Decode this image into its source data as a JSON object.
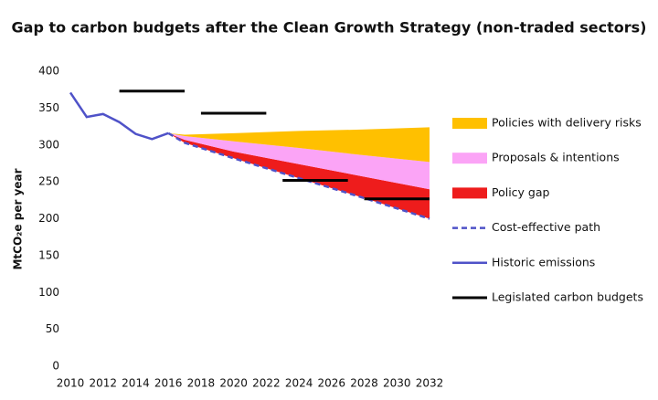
{
  "chart_data": {
    "type": "area",
    "title": "Gap to carbon budgets after the Clean Growth Strategy (non-traded sectors)",
    "y_label": "MtCO₂e per year",
    "xlim": [
      2010,
      2032
    ],
    "xticks": [
      2010,
      2012,
      2014,
      2016,
      2018,
      2020,
      2022,
      2024,
      2026,
      2028,
      2030,
      2032
    ],
    "ylim": [
      0,
      400
    ],
    "yticks": [
      0,
      50,
      100,
      150,
      200,
      250,
      300,
      350,
      400
    ],
    "stacked": true,
    "legend": "right",
    "series": [
      {
        "name": "Policies with delivery risks",
        "type": "area",
        "color": "#ffc000",
        "x": [
          2016,
          2017,
          2020,
          2024,
          2028,
          2032
        ],
        "values": [
          0,
          2,
          11,
          23,
          35,
          47
        ]
      },
      {
        "name": "Proposals & intentions",
        "type": "area",
        "color": "#fba4f6",
        "x": [
          2016,
          2017,
          2020,
          2024,
          2028,
          2032
        ],
        "values": [
          0,
          5,
          14,
          22,
          29,
          37
        ]
      },
      {
        "name": "Policy gap",
        "type": "area",
        "color": "#ee1c1c",
        "x": [
          2016,
          2017,
          2020,
          2024,
          2028,
          2032
        ],
        "values": [
          0,
          4,
          9,
          19,
          29,
          40
        ]
      },
      {
        "name": "Cost-effective path",
        "type": "line",
        "dashed": true,
        "color": "#4f52c8",
        "x": [
          2016,
          2017,
          2020,
          2024,
          2028,
          2032
        ],
        "values": [
          316,
          303,
          282,
          255,
          228,
          200
        ]
      },
      {
        "name": "Historic emissions",
        "type": "line",
        "color": "#4f52c8",
        "x": [
          2010,
          2011,
          2012,
          2013,
          2014,
          2015,
          2016
        ],
        "values": [
          371,
          338,
          342,
          331,
          315,
          308,
          316
        ]
      },
      {
        "name": "Legislated carbon budgets",
        "type": "step",
        "color": "#000000",
        "periods": [
          [
            2013,
            2017
          ],
          [
            2018,
            2022
          ],
          [
            2023,
            2027
          ],
          [
            2028,
            2032
          ]
        ],
        "values": [
          373,
          343,
          252,
          227
        ]
      }
    ]
  }
}
